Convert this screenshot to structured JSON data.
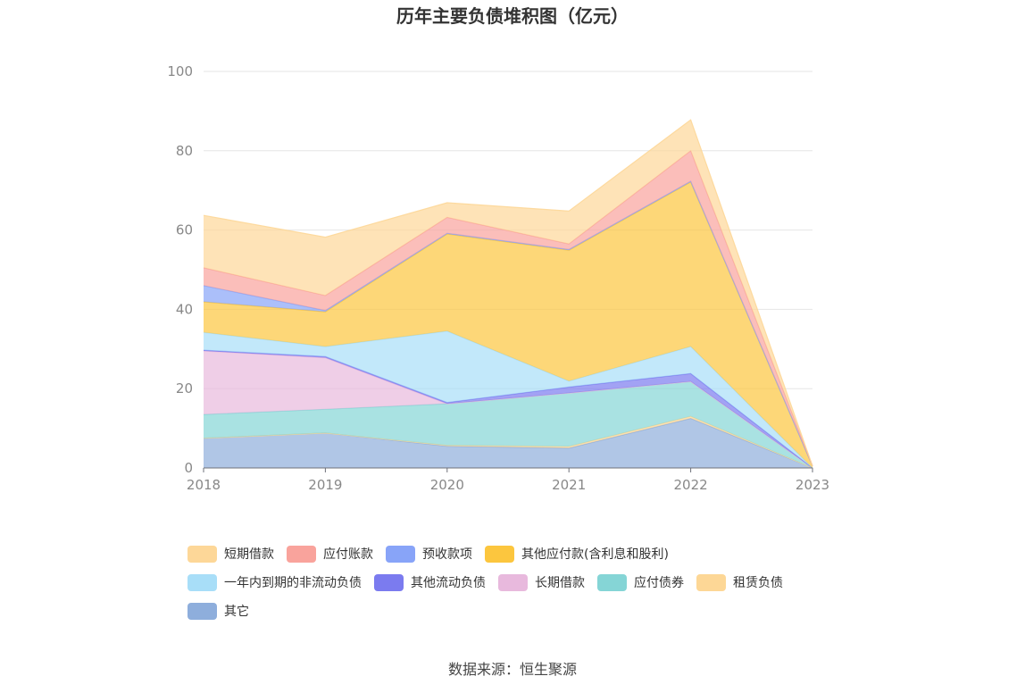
{
  "chart_data": {
    "type": "area",
    "title": "历年主要负债堆积图（亿元）",
    "source": "数据来源：恒生聚源",
    "x": [
      "2018",
      "2019",
      "2020",
      "2021",
      "2022",
      "2023"
    ],
    "ylim": [
      0,
      100
    ],
    "yticks": [
      "0",
      "20",
      "40",
      "60",
      "80",
      "100"
    ],
    "grid": true,
    "legend_position": "bottom",
    "stacked": true,
    "series": [
      {
        "name": "其它",
        "color": "#8eaedc",
        "values": [
          7.5,
          8.8,
          5.5,
          5.0,
          12.5,
          0
        ]
      },
      {
        "name": "租赁负债",
        "color": "#fdd796",
        "values": [
          0,
          0,
          0.2,
          0.4,
          0.5,
          0
        ]
      },
      {
        "name": "应付债券",
        "color": "#85d5d6",
        "values": [
          6.0,
          6.0,
          10.5,
          13.5,
          8.8,
          0
        ]
      },
      {
        "name": "长期借款",
        "color": "#e8b9dd",
        "values": [
          16.0,
          13.0,
          0,
          0,
          0,
          0
        ]
      },
      {
        "name": "其他流动负债",
        "color": "#7b7bef",
        "values": [
          0.2,
          0.3,
          0.3,
          1.5,
          2.0,
          0
        ]
      },
      {
        "name": "一年内到期的非流动负债",
        "color": "#a8def8",
        "values": [
          4.5,
          2.5,
          18.0,
          1.5,
          6.8,
          0
        ]
      },
      {
        "name": "其他应付款(含利息和股利)",
        "color": "#fcc63e",
        "values": [
          7.7,
          8.8,
          24.5,
          33.0,
          41.5,
          0.5
        ]
      },
      {
        "name": "预收款项",
        "color": "#88a4f8",
        "values": [
          4.1,
          0.3,
          0.2,
          0.2,
          0.2,
          0
        ]
      },
      {
        "name": "应付账款",
        "color": "#f9a39c",
        "values": [
          4.5,
          3.8,
          4.0,
          1.4,
          7.7,
          0
        ]
      },
      {
        "name": "短期借款",
        "color": "#fdd798",
        "values": [
          13.2,
          14.7,
          3.7,
          8.3,
          7.8,
          0
        ]
      }
    ]
  },
  "legend_rows": [
    [
      "短期借款",
      "应付账款",
      "预收款项",
      "其他应付款(含利息和股利)"
    ],
    [
      "一年内到期的非流动负债",
      "其他流动负债",
      "长期借款",
      "应付债券",
      "租赁负债"
    ],
    [
      "其它"
    ]
  ]
}
